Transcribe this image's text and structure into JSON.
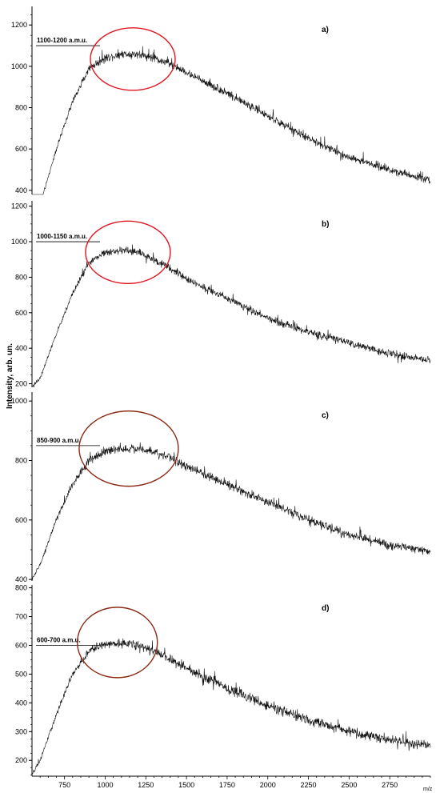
{
  "chart_data": [
    {
      "type": "line",
      "panel_label": "a)",
      "peak_annotation": "1100-1200 a.m.u.",
      "peak_level": 1100,
      "ellipse_color": "#e0141e",
      "ellipse_center_x": 1170,
      "ellipse_center_y": 1035,
      "xlim": [
        550,
        3000
      ],
      "ylim": [
        380,
        1290
      ],
      "yticks": [
        400,
        600,
        800,
        1000,
        1200
      ],
      "envelope": {
        "x": [
          550,
          600,
          700,
          800,
          900,
          1000,
          1100,
          1200,
          1300,
          1400,
          1500,
          1750,
          2000,
          2250,
          2500,
          2750,
          3000
        ],
        "y": [
          270,
          330,
          600,
          830,
          990,
          1040,
          1060,
          1060,
          1040,
          1010,
          970,
          870,
          760,
          650,
          560,
          500,
          450
        ]
      },
      "noise": 28
    },
    {
      "type": "line",
      "panel_label": "b)",
      "peak_annotation": "1000-1150 a.m.u.",
      "peak_level": 1000,
      "ellipse_color": "#e0141e",
      "ellipse_center_x": 1140,
      "ellipse_center_y": 940,
      "xlim": [
        550,
        3000
      ],
      "ylim": [
        180,
        1230
      ],
      "yticks": [
        200,
        400,
        600,
        800,
        1000,
        1200
      ],
      "envelope": {
        "x": [
          550,
          600,
          700,
          800,
          900,
          1000,
          1100,
          1200,
          1300,
          1400,
          1500,
          1750,
          2000,
          2250,
          2500,
          2750,
          3000
        ],
        "y": [
          180,
          230,
          480,
          710,
          880,
          940,
          950,
          940,
          900,
          850,
          790,
          680,
          570,
          490,
          430,
          370,
          330
        ]
      },
      "noise": 30
    },
    {
      "type": "line",
      "panel_label": "c)",
      "peak_annotation": "850-900 a.m.u.",
      "peak_level": 850,
      "ellipse_color": "#8b2a12",
      "ellipse_center_x": 1145,
      "ellipse_center_y": 840,
      "xlim": [
        550,
        3000
      ],
      "ylim": [
        395,
        1030
      ],
      "yticks": [
        400,
        600,
        800,
        1000
      ],
      "envelope": {
        "x": [
          550,
          600,
          700,
          800,
          900,
          1000,
          1100,
          1200,
          1300,
          1400,
          1500,
          1750,
          2000,
          2250,
          2500,
          2750,
          3000
        ],
        "y": [
          400,
          450,
          600,
          720,
          800,
          830,
          840,
          840,
          830,
          810,
          780,
          720,
          660,
          600,
          550,
          515,
          495
        ]
      },
      "noise": 22
    },
    {
      "type": "line",
      "panel_label": "d)",
      "peak_annotation": "600-700 a.m.u.",
      "peak_level": 600,
      "ellipse_color": "#8b2a12",
      "ellipse_center_x": 1075,
      "ellipse_center_y": 610,
      "xlim": [
        550,
        3000
      ],
      "ylim": [
        145,
        810
      ],
      "yticks": [
        200,
        300,
        400,
        500,
        600,
        700,
        800
      ],
      "envelope": {
        "x": [
          550,
          600,
          700,
          800,
          900,
          1000,
          1100,
          1200,
          1300,
          1400,
          1500,
          1750,
          2000,
          2250,
          2500,
          2750,
          3000
        ],
        "y": [
          150,
          200,
          360,
          500,
          580,
          605,
          610,
          600,
          580,
          550,
          520,
          450,
          390,
          340,
          300,
          270,
          250
        ]
      },
      "noise": 25
    }
  ],
  "x_axis": {
    "unit": "m/z",
    "ticks": [
      750,
      1000,
      1250,
      1500,
      1750,
      2000,
      2250,
      2500,
      2750
    ]
  },
  "y_axis_title": "Intensity, arb. un."
}
